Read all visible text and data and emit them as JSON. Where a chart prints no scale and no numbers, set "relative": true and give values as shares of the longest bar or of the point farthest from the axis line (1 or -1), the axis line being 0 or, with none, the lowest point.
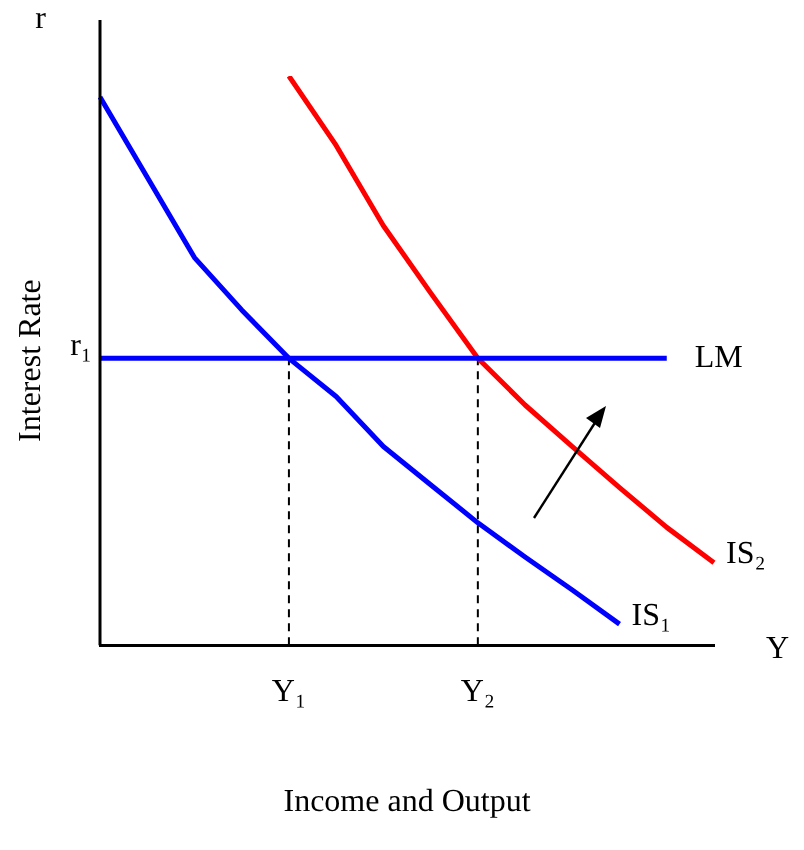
{
  "chart_data": {
    "type": "line",
    "relative": true,
    "xlabel": "Income and Output",
    "ylabel": "Interest Rate",
    "legend": false,
    "grid": false,
    "marker": "none",
    "categories": [
      null,
      null,
      null,
      null,
      "Y₁",
      null,
      null,
      null,
      "Y₂",
      null,
      null,
      null,
      null,
      null
    ],
    "series": [
      {
        "name": "LM",
        "color": "#0000ff",
        "values": [
          0.504,
          0.504,
          0.504,
          0.504,
          0.504,
          0.504,
          0.504,
          0.504,
          0.504,
          0.504,
          0.504,
          0.504,
          0.504,
          null
        ]
      },
      {
        "name": "IS₁",
        "color": "#0000ff",
        "values": [
          0.963,
          0.822,
          0.681,
          0.589,
          0.504,
          0.437,
          0.349,
          0.282,
          0.215,
          0.155,
          0.097,
          0.037,
          null,
          null
        ]
      },
      {
        "name": "IS₂",
        "color": "#ff0000",
        "values": [
          null,
          null,
          null,
          null,
          1.0,
          0.878,
          0.737,
          0.619,
          0.504,
          0.422,
          0.349,
          0.277,
          0.207,
          0.145
        ]
      }
    ],
    "ref_lines": [
      {
        "axis": "x",
        "value": "Y₁",
        "color": "#000000",
        "line_style": "dashed"
      },
      {
        "axis": "x",
        "value": "Y₂",
        "color": "#000000",
        "line_style": "dashed"
      }
    ],
    "annotations": [
      "r",
      "Y",
      "r₁"
    ]
  }
}
